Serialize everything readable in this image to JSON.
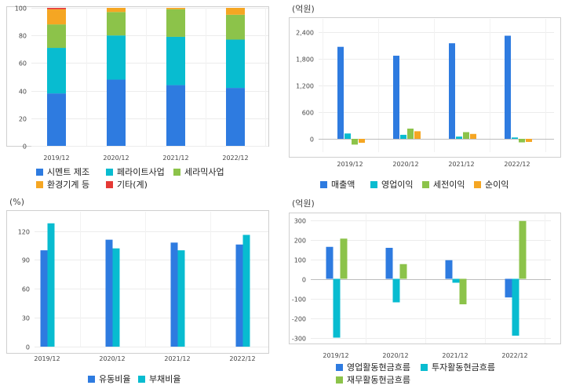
{
  "chart_data": [
    {
      "id": "segments",
      "type": "bar",
      "stacked": true,
      "categories": [
        "2019/12",
        "2020/12",
        "2021/12",
        "2022/12"
      ],
      "ylim": [
        0,
        100
      ],
      "yticks": [
        0,
        20,
        40,
        60,
        80,
        100
      ],
      "unit": "",
      "series": [
        {
          "name": "시멘트 제조",
          "color": "#2e7be0",
          "values": [
            38,
            48,
            44,
            42
          ]
        },
        {
          "name": "페라이트사업",
          "color": "#08bcd0",
          "values": [
            33,
            32,
            35,
            35
          ]
        },
        {
          "name": "세라믹사업",
          "color": "#8cc34a",
          "values": [
            17,
            17,
            20,
            18
          ]
        },
        {
          "name": "환경기계 등",
          "color": "#f5a623",
          "values": [
            11,
            3,
            1,
            5
          ]
        },
        {
          "name": "기타(계)",
          "color": "#e53935",
          "values": [
            1,
            0,
            0,
            0
          ]
        }
      ],
      "grid": true
    },
    {
      "id": "income",
      "type": "bar",
      "categories": [
        "2019/12",
        "2020/12",
        "2021/12",
        "2022/12"
      ],
      "ylim": [
        -300,
        2700
      ],
      "yticks": [
        0,
        600,
        1200,
        1800,
        2400
      ],
      "ytick_labels": [
        "0",
        "600",
        "1,200",
        "1,800",
        "2,400"
      ],
      "unit": "(억원)",
      "series": [
        {
          "name": "매출액",
          "color": "#2e7be0",
          "values": [
            2070,
            1870,
            2150,
            2320
          ]
        },
        {
          "name": "영업이익",
          "color": "#08bcd0",
          "values": [
            120,
            90,
            50,
            30
          ]
        },
        {
          "name": "세전이익",
          "color": "#8cc34a",
          "values": [
            -130,
            230,
            150,
            -80
          ]
        },
        {
          "name": "순이익",
          "color": "#f5a623",
          "values": [
            -90,
            170,
            110,
            -70
          ]
        }
      ],
      "grid": true
    },
    {
      "id": "ratios",
      "type": "bar",
      "categories": [
        "2019/12",
        "2020/12",
        "2021/12",
        "2022/12"
      ],
      "ylim": [
        0,
        140
      ],
      "yticks": [
        0,
        30,
        60,
        90,
        120
      ],
      "unit": "(%)",
      "series": [
        {
          "name": "유동비율",
          "color": "#2e7be0",
          "values": [
            100,
            111,
            108,
            106
          ]
        },
        {
          "name": "부채비율",
          "color": "#08bcd0",
          "values": [
            128,
            102,
            100,
            116
          ]
        }
      ],
      "grid": true
    },
    {
      "id": "cashflow",
      "type": "bar",
      "categories": [
        "2019/12",
        "2020/12",
        "2021/12",
        "2022/12"
      ],
      "ylim": [
        -330,
        330
      ],
      "yticks": [
        -300,
        -200,
        -100,
        0,
        100,
        200,
        300
      ],
      "unit": "(억원)",
      "series": [
        {
          "name": "영업활동현금흐름",
          "color": "#2e7be0",
          "values": [
            163,
            158,
            95,
            -95
          ]
        },
        {
          "name": "투자활동현금흐름",
          "color": "#08bcd0",
          "values": [
            -300,
            -120,
            -20,
            -290
          ]
        },
        {
          "name": "재무활동현금흐름",
          "color": "#8cc34a",
          "values": [
            205,
            75,
            -130,
            295
          ]
        }
      ],
      "grid": true
    }
  ]
}
